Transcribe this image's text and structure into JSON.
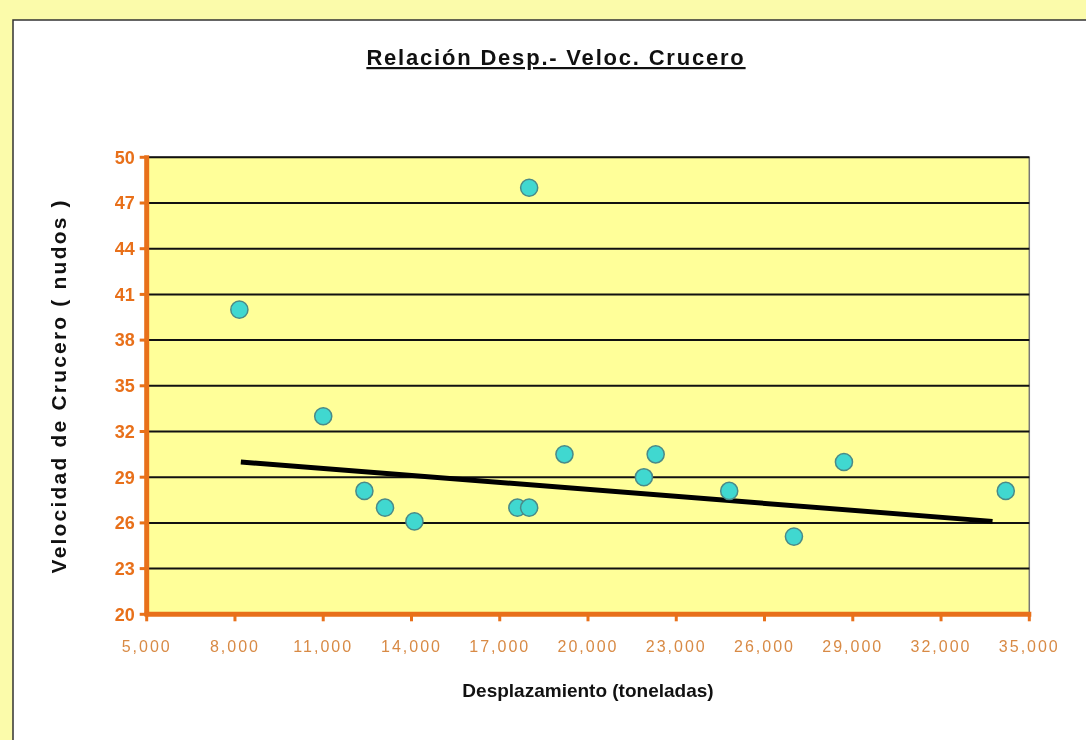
{
  "chart_data": {
    "type": "scatter",
    "title": "Relación Desp.- Veloc. Crucero",
    "xlabel": "Desplazamiento (toneladas)",
    "ylabel": "Velocidad de Crucero ( nudos )",
    "xlim": [
      5000,
      35000
    ],
    "xticks": [
      {
        "value": 5000,
        "label": "5,000"
      },
      {
        "value": 8000,
        "label": "8,000"
      },
      {
        "value": 11000,
        "label": "11,000"
      },
      {
        "value": 14000,
        "label": "14,000"
      },
      {
        "value": 17000,
        "label": "17,000"
      },
      {
        "value": 20000,
        "label": "20,000"
      },
      {
        "value": 23000,
        "label": "23,000"
      },
      {
        "value": 26000,
        "label": "26,000"
      },
      {
        "value": 29000,
        "label": "29,000"
      },
      {
        "value": 32000,
        "label": "32,000"
      },
      {
        "value": 35000,
        "label": "35,000"
      }
    ],
    "ylim": [
      20,
      50
    ],
    "yticks": [
      20,
      23,
      26,
      29,
      32,
      35,
      38,
      41,
      44,
      47,
      50
    ],
    "grid": "y",
    "marker": "circle",
    "series": [
      {
        "type": "scatter",
        "color": "#40d8d0",
        "x": [
          8150,
          11000,
          18000,
          12400,
          13100,
          14100,
          17600,
          18000,
          19200,
          21900,
          22300,
          24800,
          27000,
          28700,
          34200
        ],
        "values": [
          40,
          33,
          48,
          28.1,
          27,
          26.1,
          27,
          27,
          30.5,
          29,
          30.5,
          28.1,
          25.1,
          30,
          28.1
        ]
      },
      {
        "type": "line",
        "color": "#000000",
        "marker": "none",
        "x": [
          8200,
          33750
        ],
        "values": [
          30,
          26.1
        ]
      }
    ]
  }
}
